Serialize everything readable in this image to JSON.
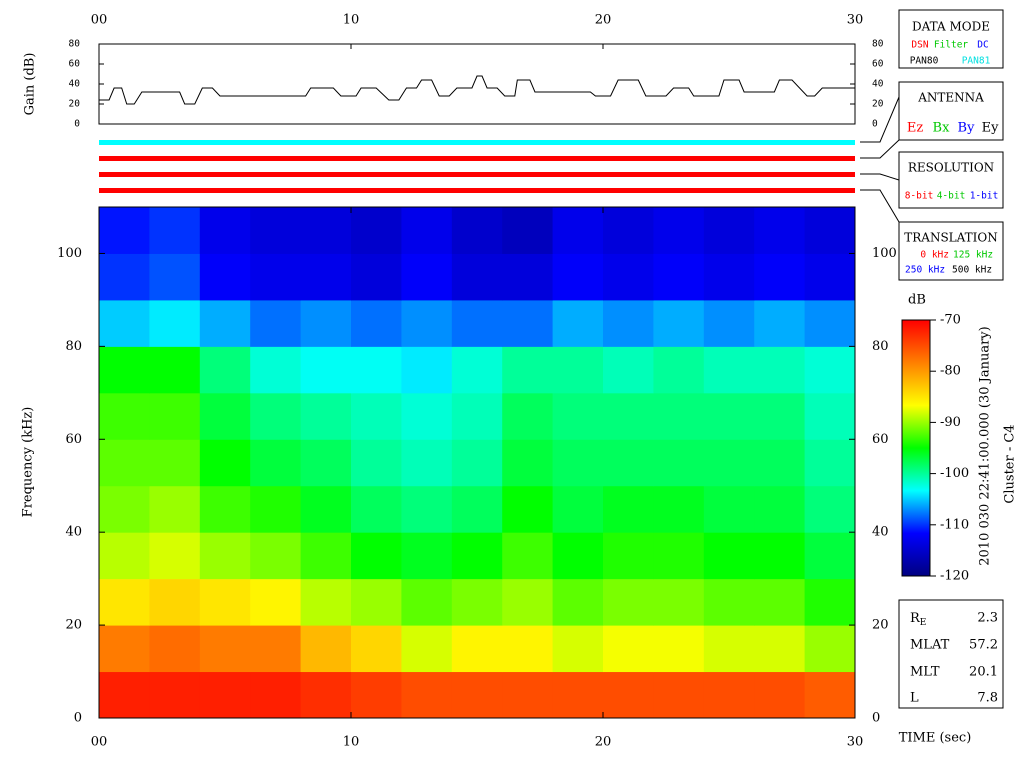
{
  "chart_data": [
    {
      "type": "line",
      "ylabel": "Gain (dB)",
      "color": "#000000",
      "x": [
        0,
        0.4,
        0.6,
        0.9,
        1.1,
        1.4,
        1.7,
        3.2,
        3.4,
        3.8,
        4.1,
        4.5,
        4.8,
        8.2,
        8.4,
        9.3,
        9.6,
        10.2,
        10.4,
        11.0,
        11.5,
        11.9,
        12.2,
        12.6,
        12.8,
        13.2,
        13.5,
        13.9,
        14.2,
        14.8,
        15.0,
        15.2,
        15.4,
        15.8,
        16.1,
        16.5,
        16.6,
        17.1,
        17.3,
        19.5,
        19.7,
        20.3,
        20.6,
        21.4,
        21.7,
        22.5,
        22.8,
        23.4,
        23.6,
        24.6,
        24.8,
        25.4,
        25.6,
        26.8,
        27.0,
        27.5,
        28.1,
        28.4,
        28.7,
        30
      ],
      "values": [
        24,
        24,
        36,
        36,
        20,
        20,
        32,
        32,
        20,
        20,
        36,
        36,
        28,
        28,
        36,
        36,
        28,
        28,
        36,
        36,
        24,
        24,
        36,
        36,
        44,
        44,
        28,
        28,
        36,
        36,
        48,
        48,
        36,
        36,
        28,
        28,
        44,
        44,
        32,
        32,
        28,
        28,
        44,
        44,
        28,
        28,
        36,
        36,
        28,
        28,
        44,
        44,
        32,
        32,
        44,
        44,
        28,
        28,
        36,
        36
      ],
      "xlim": [
        0,
        30
      ],
      "xticks": [
        {
          "value": 0,
          "label": "00"
        },
        10,
        20,
        30
      ],
      "ylim": [
        0,
        80
      ],
      "yticks": [
        0,
        20,
        40,
        60,
        80
      ]
    },
    {
      "type": "heatmap",
      "ylabel": "Frequency (kHz)",
      "xlabel": "TIME (sec)",
      "zlabel": "dB",
      "x_bins": [
        0,
        2,
        4,
        6,
        8,
        10,
        12,
        14,
        16,
        18,
        20,
        22,
        24,
        26,
        28,
        30
      ],
      "y_bins": [
        0,
        10,
        20,
        30,
        40,
        50,
        60,
        70,
        80,
        90,
        100,
        110
      ],
      "z": [
        [
          -72,
          -72,
          -72,
          -72,
          -73,
          -74,
          -75,
          -75,
          -75,
          -75,
          -75,
          -75,
          -75,
          -75,
          -76
        ],
        [
          -78,
          -77,
          -78,
          -78,
          -82,
          -84,
          -88,
          -86,
          -86,
          -88,
          -87,
          -87,
          -88,
          -88,
          -90
        ],
        [
          -85,
          -84,
          -85,
          -86,
          -89,
          -90,
          -92,
          -91,
          -90,
          -92,
          -91,
          -91,
          -92,
          -92,
          -94
        ],
        [
          -89,
          -88,
          -90,
          -91,
          -93,
          -95,
          -96,
          -95,
          -93,
          -95,
          -94,
          -94,
          -95,
          -95,
          -97
        ],
        [
          -91,
          -90,
          -93,
          -94,
          -96,
          -98,
          -99,
          -98,
          -95,
          -97,
          -96,
          -96,
          -97,
          -97,
          -99
        ],
        [
          -92,
          -92,
          -95,
          -97,
          -98,
          -100,
          -101,
          -100,
          -97,
          -98,
          -98,
          -98,
          -98,
          -98,
          -100
        ],
        [
          -93,
          -93,
          -97,
          -99,
          -100,
          -101,
          -102,
          -101,
          -98,
          -99,
          -99,
          -99,
          -99,
          -99,
          -101
        ],
        [
          -95,
          -95,
          -99,
          -102,
          -103,
          -103,
          -104,
          -102,
          -100,
          -100,
          -101,
          -100,
          -101,
          -101,
          -102
        ],
        [
          -105,
          -104,
          -106,
          -108,
          -107,
          -108,
          -107,
          -108,
          -108,
          -106,
          -107,
          -106,
          -107,
          -106,
          -107
        ],
        [
          -110,
          -109,
          -112,
          -113,
          -113,
          -114,
          -112,
          -114,
          -114,
          -112,
          -113,
          -112,
          -113,
          -112,
          -113
        ],
        [
          -111,
          -110,
          -113,
          -114,
          -114,
          -115,
          -113,
          -115,
          -116,
          -113,
          -114,
          -113,
          -114,
          -113,
          -114
        ]
      ],
      "xlim": [
        0,
        30
      ],
      "xticks": [
        {
          "value": 0,
          "label": "00"
        },
        10,
        20,
        30
      ],
      "ylim": [
        0,
        110
      ],
      "yticks": [
        0,
        20,
        40,
        60,
        80,
        100
      ],
      "zlim": [
        -120,
        -70
      ],
      "zticks": [
        -120,
        -110,
        -100,
        -90,
        -80,
        -70
      ],
      "colorscale": [
        "#000080",
        "#0000ff",
        "#00ffff",
        "#00ff00",
        "#ffff00",
        "#ff8000",
        "#ff0000"
      ]
    }
  ],
  "status_bars": [
    "#00ffff",
    "#ff0000",
    "#ff0000",
    "#ff0000"
  ],
  "data_mode": {
    "title": "DATA MODE",
    "items": [
      "DSN",
      "Filter",
      "DC",
      "PAN80",
      "PAN81"
    ]
  },
  "antenna": {
    "title": "ANTENNA",
    "items": [
      "Ez",
      "Bx",
      "By",
      "Ey"
    ]
  },
  "resolution": {
    "title": "RESOLUTION",
    "items": [
      "8-bit",
      "4-bit",
      "1-bit"
    ]
  },
  "translation": {
    "title": "TRANSLATION",
    "items": [
      "0 kHz",
      "125 kHz",
      "250 kHz",
      "500 kHz"
    ]
  },
  "caption": [
    "2010 030 22:41:00.000 (30 January)",
    "Cluster - C4"
  ],
  "info": [
    {
      "label": "R",
      "sub": "E",
      "value": 2.3
    },
    {
      "label": "MLAT",
      "value": 57.2
    },
    {
      "label": "MLT",
      "value": 20.1
    },
    {
      "label": "L",
      "value": 7.8
    }
  ]
}
